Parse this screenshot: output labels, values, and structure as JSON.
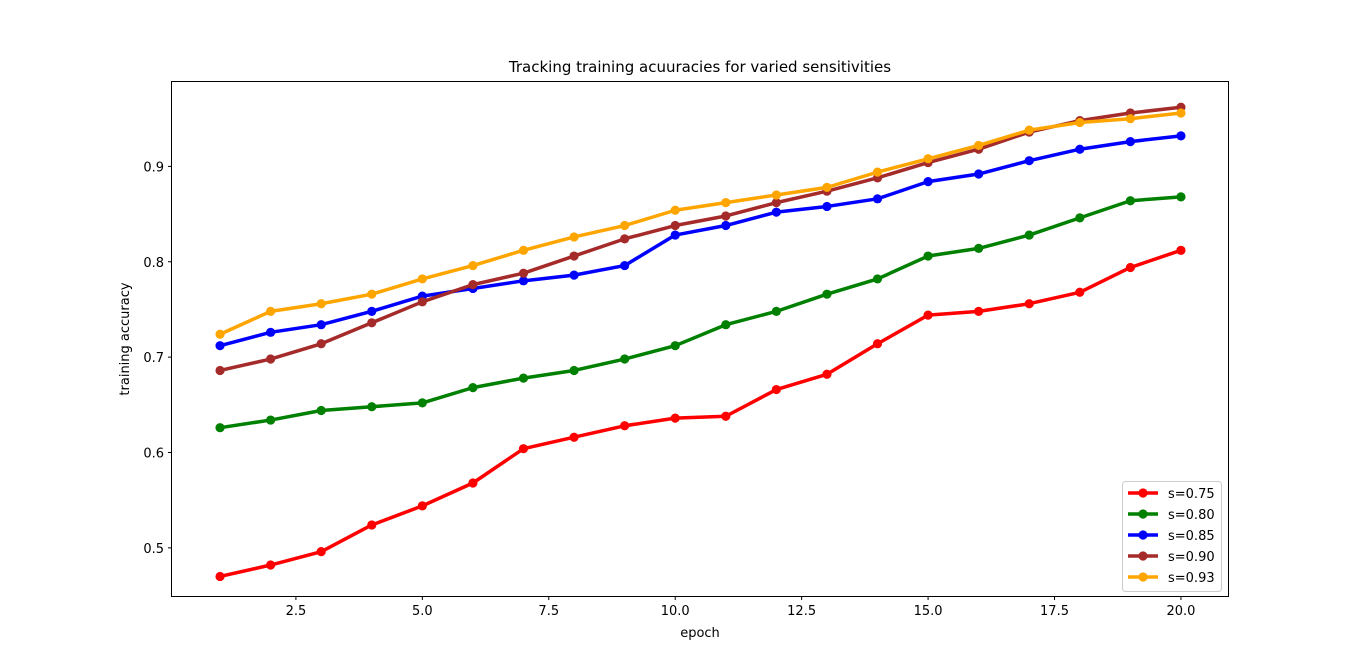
{
  "chart_data": {
    "type": "line",
    "title": "Tracking training acuuracies for varied sensitivities",
    "xlabel": "epoch",
    "ylabel": "training accuracy",
    "xlim": [
      0.05,
      20.95
    ],
    "ylim": [
      0.4495,
      0.9885
    ],
    "xticks": [
      2.5,
      5.0,
      7.5,
      10.0,
      12.5,
      15.0,
      17.5,
      20.0
    ],
    "xtick_labels": [
      "2.5",
      "5.0",
      "7.5",
      "10.0",
      "12.5",
      "15.0",
      "17.5",
      "20.0"
    ],
    "yticks": [
      0.5,
      0.6,
      0.7,
      0.8,
      0.9
    ],
    "ytick_labels": [
      "0.5",
      "0.6",
      "0.7",
      "0.8",
      "0.9"
    ],
    "grid": false,
    "legend_position": "bottom-right",
    "x": [
      1,
      2,
      3,
      4,
      5,
      6,
      7,
      8,
      9,
      10,
      11,
      12,
      13,
      14,
      15,
      16,
      17,
      18,
      19,
      20
    ],
    "series": [
      {
        "name": "s=0.75",
        "color": "#ff0000",
        "values": [
          0.47,
          0.482,
          0.496,
          0.524,
          0.544,
          0.568,
          0.604,
          0.616,
          0.628,
          0.636,
          0.638,
          0.666,
          0.682,
          0.714,
          0.744,
          0.748,
          0.756,
          0.768,
          0.794,
          0.812
        ]
      },
      {
        "name": "s=0.80",
        "color": "#008000",
        "values": [
          0.626,
          0.634,
          0.644,
          0.648,
          0.652,
          0.668,
          0.678,
          0.686,
          0.698,
          0.712,
          0.734,
          0.748,
          0.766,
          0.782,
          0.806,
          0.814,
          0.828,
          0.846,
          0.864,
          0.868
        ]
      },
      {
        "name": "s=0.85",
        "color": "#0000ff",
        "values": [
          0.712,
          0.726,
          0.734,
          0.748,
          0.764,
          0.772,
          0.78,
          0.786,
          0.796,
          0.828,
          0.838,
          0.852,
          0.858,
          0.866,
          0.884,
          0.892,
          0.906,
          0.918,
          0.926,
          0.932
        ]
      },
      {
        "name": "s=0.90",
        "color": "#a52a2a",
        "values": [
          0.686,
          0.698,
          0.714,
          0.736,
          0.758,
          0.776,
          0.788,
          0.806,
          0.824,
          0.838,
          0.848,
          0.862,
          0.874,
          0.888,
          0.904,
          0.918,
          0.936,
          0.948,
          0.956,
          0.962
        ]
      },
      {
        "name": "s=0.93",
        "color": "#ffa500",
        "values": [
          0.724,
          0.748,
          0.756,
          0.766,
          0.782,
          0.796,
          0.812,
          0.826,
          0.838,
          0.854,
          0.862,
          0.87,
          0.878,
          0.894,
          0.908,
          0.922,
          0.938,
          0.946,
          0.95,
          0.956
        ]
      }
    ]
  }
}
